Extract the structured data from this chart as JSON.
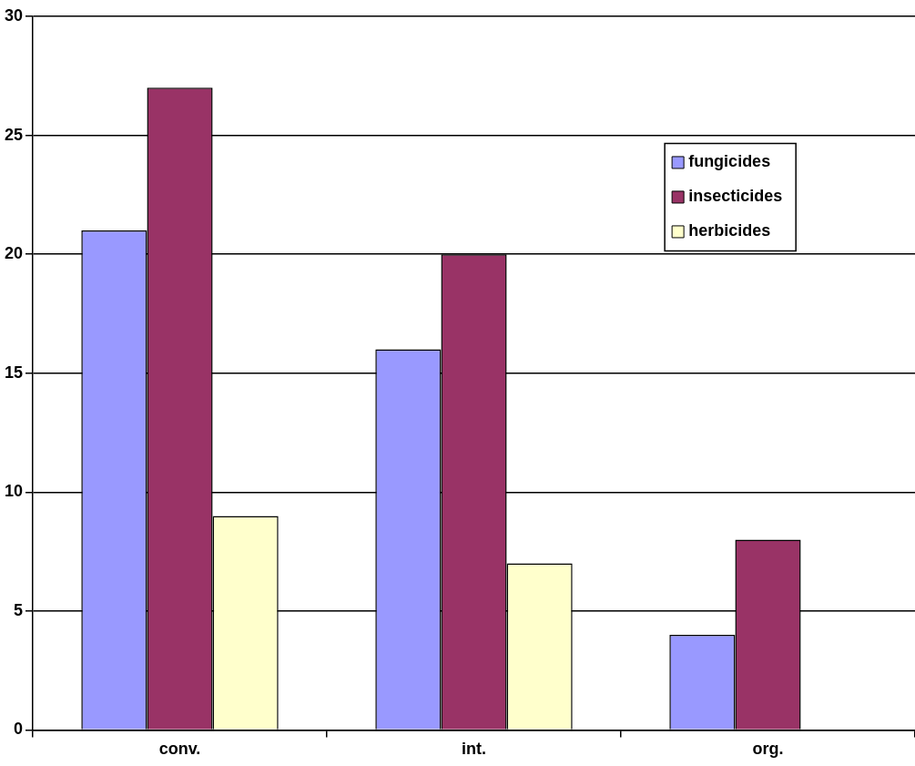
{
  "chart_data": {
    "type": "bar",
    "categories": [
      "conv.",
      "int.",
      "org."
    ],
    "series": [
      {
        "name": "fungicides",
        "color": "#9999ff",
        "values": [
          21,
          16,
          4
        ]
      },
      {
        "name": "insecticides",
        "color": "#993366",
        "values": [
          27,
          20,
          8
        ]
      },
      {
        "name": "herbicides",
        "color": "#ffffcc",
        "values": [
          9,
          7,
          0
        ]
      }
    ],
    "ylim": [
      0,
      30
    ],
    "yticks": [
      0,
      5,
      10,
      15,
      20,
      25,
      30
    ],
    "grid": "y",
    "legend": "top right"
  }
}
